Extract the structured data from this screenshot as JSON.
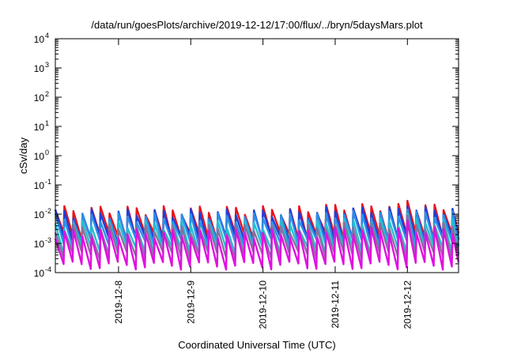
{
  "chart_data": {
    "type": "line",
    "title": "/data/run/goesPlots/archive/2019-12-12/17:00/flux/../bryn/5daysMars.plot",
    "xlabel": "Coordinated Universal Time (UTC)",
    "ylabel": "cSv/day",
    "y_scale": "log",
    "ylim": [
      0.0001,
      10000
    ],
    "xlim": [
      "2019-12-07 03:00",
      "2019-12-12 17:00"
    ],
    "grid": false,
    "y_ticks": [
      {
        "base": "10",
        "exp": "-4",
        "value": 0.0001
      },
      {
        "base": "10",
        "exp": "-3",
        "value": 0.001
      },
      {
        "base": "10",
        "exp": "-2",
        "value": 0.01
      },
      {
        "base": "10",
        "exp": "-1",
        "value": 0.1
      },
      {
        "base": "10",
        "exp": "0",
        "value": 1
      },
      {
        "base": "10",
        "exp": "1",
        "value": 10
      },
      {
        "base": "10",
        "exp": "2",
        "value": 100
      },
      {
        "base": "10",
        "exp": "3",
        "value": 1000
      },
      {
        "base": "10",
        "exp": "4",
        "value": 10000
      }
    ],
    "x_ticks": [
      {
        "label": "2019-12-8",
        "value": "2019-12-08 00:00"
      },
      {
        "label": "2019-12-9",
        "value": "2019-12-09 00:00"
      },
      {
        "label": "2019-12-10",
        "value": "2019-12-10 00:00"
      },
      {
        "label": "2019-12-11",
        "value": "2019-12-11 00:00"
      },
      {
        "label": "2019-12-12",
        "value": "2019-12-12 00:00"
      }
    ],
    "sawtooth_period_hours": 3,
    "series": [
      {
        "color": "#e8141c",
        "peak": 0.014,
        "trough": 0.0018
      },
      {
        "color": "#1f3fd8",
        "peak": 0.011,
        "trough": 0.0014
      },
      {
        "color": "#2b8fe8",
        "peak": 0.008,
        "trough": 0.0011
      },
      {
        "color": "#24c0d0",
        "peak": 0.0045,
        "trough": 0.0006
      },
      {
        "color": "#8a70a0",
        "peak": 0.0032,
        "trough": 0.0004
      },
      {
        "color": "#e010e0",
        "peak": 0.0022,
        "trough": 0.00018
      }
    ]
  }
}
